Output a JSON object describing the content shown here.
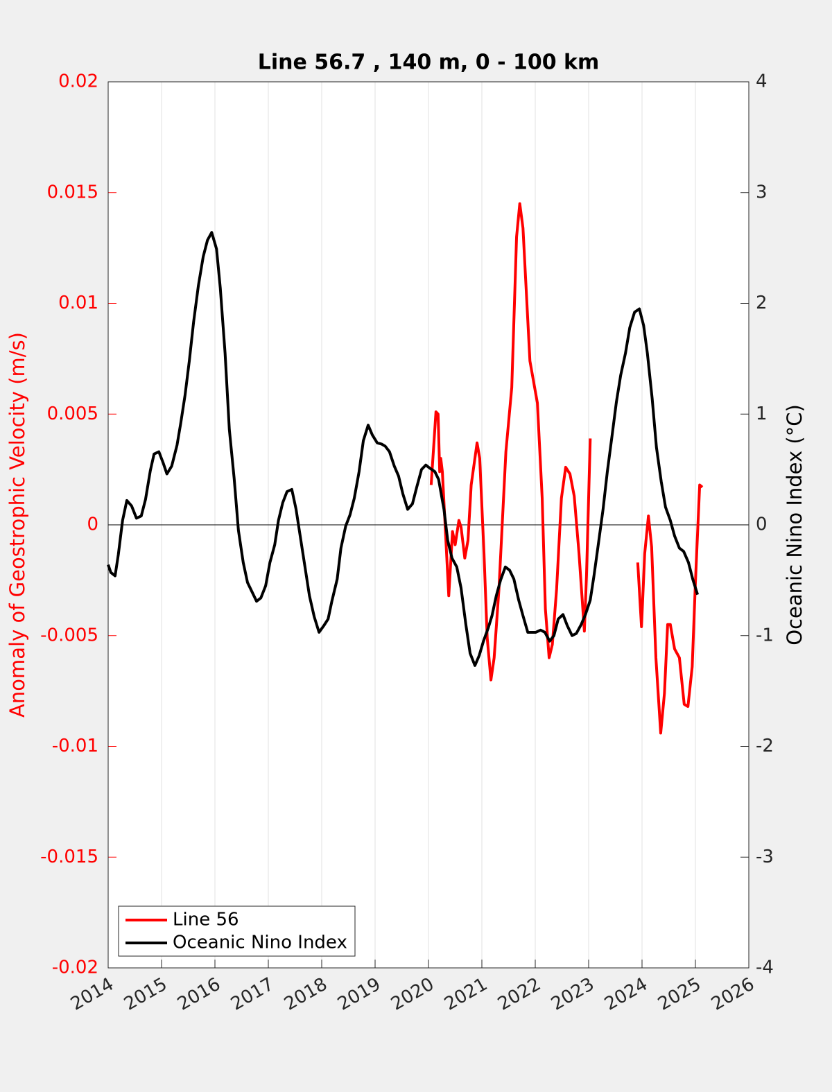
{
  "chart_data": {
    "type": "line",
    "title": "Line 56.7 , 140 m, 0 - 100 km",
    "ylabel": "Anomaly of Geostrophic Velocity (m/s)",
    "y2label": "Oceanic Nino Index (°C)",
    "xlim": [
      2014,
      2026
    ],
    "xticks": [
      2014,
      2015,
      2016,
      2017,
      2018,
      2019,
      2020,
      2021,
      2022,
      2023,
      2024,
      2025,
      2026
    ],
    "ylim": [
      -0.02,
      0.02
    ],
    "yticks": [
      -0.02,
      -0.015,
      -0.01,
      -0.005,
      0,
      0.005,
      0.01,
      0.015,
      0.02
    ],
    "y2lim": [
      -4,
      4
    ],
    "y2ticks": [
      -4,
      -3,
      -2,
      -1,
      0,
      1,
      2,
      3,
      4
    ],
    "grid": true,
    "legend": "lower left",
    "series": [
      {
        "name": "Line 56",
        "color": "#ff0000",
        "axis": "y",
        "x": [
          2020.05,
          2020.14,
          2020.18,
          2020.21,
          2020.23,
          2020.26,
          2020.38,
          2020.45,
          2020.5,
          2020.57,
          2020.61,
          2020.68,
          2020.74,
          2020.8,
          2020.91,
          2020.96,
          2021.04,
          2021.1,
          2021.17,
          2021.23,
          2021.32,
          2021.45,
          2021.56,
          2021.65,
          2021.71,
          2021.77,
          2021.9,
          2022.04,
          2022.13,
          2022.19,
          2022.26,
          2022.32,
          2022.4,
          2022.49,
          2022.57,
          2022.65,
          2022.73,
          2022.82,
          2022.92,
          2022.96,
          2023.03,
          2023.5,
          2023.92,
          2023.99,
          2024.05,
          2024.12,
          2024.18,
          2024.26,
          2024.35,
          2024.42,
          2024.48,
          2024.53,
          2024.61,
          2024.7,
          2024.79,
          2024.86,
          2024.94,
          2025.0,
          2025.08,
          2025.13
        ],
        "values": [
          0.0018,
          0.0051,
          0.005,
          0.0024,
          0.003,
          0.0024,
          -0.0032,
          -0.0003,
          -0.0009,
          0.0002,
          -0.0001,
          -0.0015,
          -0.0007,
          0.0018,
          0.0037,
          0.003,
          -0.0013,
          -0.0051,
          -0.007,
          -0.006,
          -0.0029,
          0.0033,
          0.0062,
          0.013,
          0.0145,
          0.0134,
          0.0074,
          0.0055,
          0.0012,
          -0.0038,
          -0.006,
          -0.0054,
          -0.0029,
          0.0012,
          0.0026,
          0.0023,
          0.0013,
          -0.0013,
          -0.0048,
          -0.0023,
          0.0039,
          null,
          -0.0017,
          -0.0046,
          -0.0013,
          0.0004,
          -0.001,
          -0.006,
          -0.0094,
          -0.0076,
          -0.0045,
          -0.0045,
          -0.0056,
          -0.006,
          -0.0081,
          -0.0082,
          -0.0064,
          -0.0026,
          0.0018,
          0.0017
        ]
      },
      {
        "name": "Oceanic Nino Index",
        "color": "#000000",
        "axis": "y2",
        "x": [
          2014.0,
          2014.05,
          2014.13,
          2014.19,
          2014.27,
          2014.35,
          2014.44,
          2014.53,
          2014.62,
          2014.7,
          2014.79,
          2014.86,
          2014.95,
          2015.03,
          2015.1,
          2015.19,
          2015.29,
          2015.36,
          2015.44,
          2015.52,
          2015.6,
          2015.69,
          2015.78,
          2015.86,
          2015.94,
          2016.03,
          2016.1,
          2016.19,
          2016.27,
          2016.36,
          2016.44,
          2016.53,
          2016.61,
          2016.69,
          2016.78,
          2016.86,
          2016.95,
          2017.03,
          2017.12,
          2017.19,
          2017.27,
          2017.35,
          2017.44,
          2017.52,
          2017.6,
          2017.69,
          2017.77,
          2017.86,
          2017.95,
          2018.04,
          2018.12,
          2018.19,
          2018.29,
          2018.36,
          2018.45,
          2018.53,
          2018.61,
          2018.7,
          2018.78,
          2018.87,
          2018.95,
          2019.04,
          2019.12,
          2019.19,
          2019.27,
          2019.36,
          2019.44,
          2019.52,
          2019.61,
          2019.7,
          2019.78,
          2019.87,
          2019.95,
          2020.03,
          2020.12,
          2020.19,
          2020.29,
          2020.36,
          2020.44,
          2020.53,
          2020.61,
          2020.7,
          2020.78,
          2020.87,
          2020.95,
          2021.03,
          2021.12,
          2021.19,
          2021.27,
          2021.35,
          2021.44,
          2021.52,
          2021.6,
          2021.69,
          2021.77,
          2021.86,
          2021.94,
          2022.01,
          2022.1,
          2022.18,
          2022.27,
          2022.35,
          2022.43,
          2022.52,
          2022.6,
          2022.69,
          2022.77,
          2022.86,
          2022.94,
          2023.03,
          2023.1,
          2023.18,
          2023.27,
          2023.35,
          2023.44,
          2023.52,
          2023.6,
          2023.69,
          2023.77,
          2023.86,
          2023.95,
          2024.03,
          2024.1,
          2024.19,
          2024.27,
          2024.36,
          2024.44,
          2024.53,
          2024.61,
          2024.7,
          2024.78,
          2024.87,
          2024.95,
          2025.04
        ],
        "values": [
          -0.36,
          -0.43,
          -0.46,
          -0.27,
          0.04,
          0.22,
          0.17,
          0.06,
          0.08,
          0.23,
          0.49,
          0.64,
          0.66,
          0.56,
          0.46,
          0.53,
          0.72,
          0.92,
          1.17,
          1.48,
          1.83,
          2.16,
          2.42,
          2.57,
          2.64,
          2.49,
          2.14,
          1.55,
          0.86,
          0.42,
          -0.05,
          -0.34,
          -0.52,
          -0.6,
          -0.69,
          -0.66,
          -0.55,
          -0.34,
          -0.18,
          0.04,
          0.2,
          0.3,
          0.32,
          0.14,
          -0.11,
          -0.39,
          -0.64,
          -0.83,
          -0.97,
          -0.91,
          -0.85,
          -0.69,
          -0.49,
          -0.21,
          -0.01,
          0.09,
          0.24,
          0.48,
          0.76,
          0.9,
          0.81,
          0.74,
          0.73,
          0.71,
          0.66,
          0.53,
          0.44,
          0.28,
          0.14,
          0.19,
          0.34,
          0.5,
          0.54,
          0.51,
          0.48,
          0.41,
          0.14,
          -0.14,
          -0.3,
          -0.38,
          -0.57,
          -0.9,
          -1.16,
          -1.27,
          -1.18,
          -1.05,
          -0.93,
          -0.82,
          -0.64,
          -0.5,
          -0.38,
          -0.41,
          -0.49,
          -0.68,
          -0.82,
          -0.97,
          -0.97,
          -0.97,
          -0.95,
          -0.97,
          -1.05,
          -1.0,
          -0.85,
          -0.81,
          -0.91,
          -1.0,
          -0.98,
          -0.9,
          -0.81,
          -0.68,
          -0.46,
          -0.18,
          0.14,
          0.48,
          0.81,
          1.11,
          1.35,
          1.55,
          1.78,
          1.92,
          1.95,
          1.8,
          1.55,
          1.14,
          0.7,
          0.39,
          0.16,
          0.04,
          -0.1,
          -0.21,
          -0.24,
          -0.34,
          -0.49,
          -0.63
        ]
      }
    ]
  }
}
